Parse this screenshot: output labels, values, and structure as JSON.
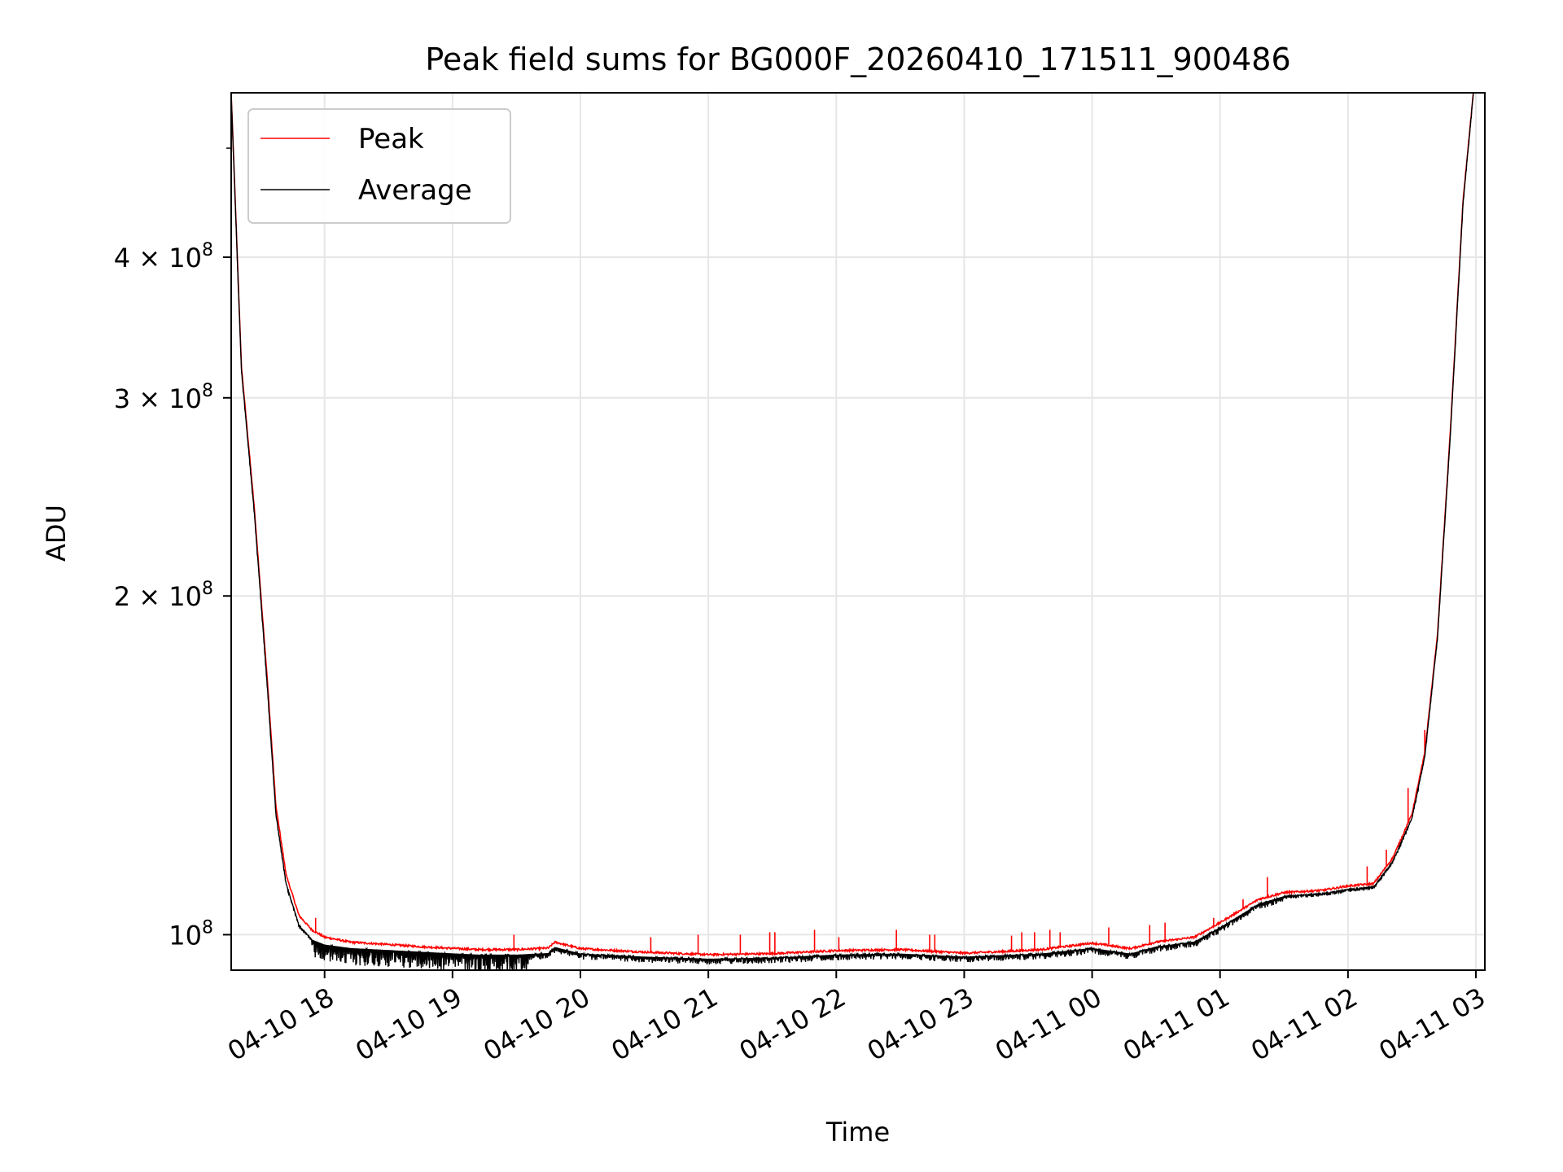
{
  "chart_data": {
    "type": "line",
    "title": "Peak field sums for BG000F_20260410_171511_900486",
    "xlabel": "Time",
    "ylabel": "ADU",
    "y_scale": "log",
    "ylim": [
      93000000,
      560000000
    ],
    "xlim_hours": [
      17.27,
      27.07
    ],
    "grid": true,
    "legend_location": "upper-left",
    "x_tick_labels": [
      "04-10 18",
      "04-10 19",
      "04-10 20",
      "04-10 21",
      "04-10 22",
      "04-10 23",
      "04-11 00",
      "04-11 01",
      "04-11 02",
      "04-11 03"
    ],
    "x_tick_hours": [
      18,
      19,
      20,
      21,
      22,
      23,
      24,
      25,
      26,
      27
    ],
    "y_ticks": [
      {
        "value": 100000000,
        "mantissa": "",
        "exponent": "8",
        "label": "10"
      },
      {
        "value": 200000000,
        "mantissa": "2",
        "exponent": "8",
        "label": "10"
      },
      {
        "value": 300000000,
        "mantissa": "3",
        "exponent": "8",
        "label": "10"
      },
      {
        "value": 400000000,
        "mantissa": "4",
        "exponent": "8",
        "label": "10"
      }
    ],
    "times_symbol": "×",
    "series": [
      {
        "name": "Peak",
        "color": "#ff0000",
        "x_hours": [
          17.27,
          17.35,
          17.45,
          17.55,
          17.62,
          17.7,
          17.8,
          17.9,
          18.0,
          18.2,
          18.5,
          18.8,
          19.2,
          19.5,
          19.75,
          19.8,
          20.0,
          20.5,
          21.0,
          21.5,
          22.0,
          22.5,
          23.0,
          23.3,
          23.6,
          24.0,
          24.3,
          24.5,
          24.8,
          25.0,
          25.3,
          25.5,
          25.8,
          26.0,
          26.2,
          26.35,
          26.5,
          26.6,
          26.7,
          26.8,
          26.9,
          26.98
        ],
        "values": [
          560000000,
          320000000,
          240000000,
          170000000,
          130000000,
          113000000,
          104000000,
          101000000,
          99500000,
          98500000,
          98000000,
          97500000,
          97000000,
          97000000,
          97300000,
          98500000,
          97200000,
          96500000,
          96000000,
          96200000,
          96800000,
          97000000,
          96300000,
          96600000,
          97000000,
          98300000,
          97200000,
          98500000,
          99500000,
          102500000,
          107500000,
          109000000,
          109500000,
          110500000,
          111000000,
          117000000,
          128000000,
          145000000,
          185000000,
          280000000,
          450000000,
          560000000
        ],
        "spikes": [
          {
            "x_hours": 17.93,
            "value": 103500000
          },
          {
            "x_hours": 19.48,
            "value": 100000000
          },
          {
            "x_hours": 20.55,
            "value": 99500000
          },
          {
            "x_hours": 20.92,
            "value": 100000000
          },
          {
            "x_hours": 21.25,
            "value": 100000000
          },
          {
            "x_hours": 21.48,
            "value": 100500000
          },
          {
            "x_hours": 21.52,
            "value": 100500000
          },
          {
            "x_hours": 21.83,
            "value": 101000000
          },
          {
            "x_hours": 22.02,
            "value": 99500000
          },
          {
            "x_hours": 22.47,
            "value": 101000000
          },
          {
            "x_hours": 22.73,
            "value": 100000000
          },
          {
            "x_hours": 22.77,
            "value": 100000000
          },
          {
            "x_hours": 23.37,
            "value": 99800000
          },
          {
            "x_hours": 23.45,
            "value": 100500000
          },
          {
            "x_hours": 23.55,
            "value": 100500000
          },
          {
            "x_hours": 23.67,
            "value": 101000000
          },
          {
            "x_hours": 23.75,
            "value": 100500000
          },
          {
            "x_hours": 24.13,
            "value": 101500000
          },
          {
            "x_hours": 24.45,
            "value": 102000000
          },
          {
            "x_hours": 24.57,
            "value": 102500000
          },
          {
            "x_hours": 24.95,
            "value": 103500000
          },
          {
            "x_hours": 25.18,
            "value": 107500000
          },
          {
            "x_hours": 25.37,
            "value": 112500000
          },
          {
            "x_hours": 26.15,
            "value": 115000000
          },
          {
            "x_hours": 26.3,
            "value": 119000000
          },
          {
            "x_hours": 26.47,
            "value": 135000000
          },
          {
            "x_hours": 26.6,
            "value": 152000000
          }
        ]
      },
      {
        "name": "Average",
        "color": "#000000",
        "x_hours": [
          17.27,
          17.35,
          17.45,
          17.55,
          17.62,
          17.7,
          17.8,
          17.9,
          18.0,
          18.2,
          18.5,
          18.8,
          19.2,
          19.5,
          19.75,
          19.8,
          20.0,
          20.5,
          21.0,
          21.5,
          22.0,
          22.5,
          23.0,
          23.3,
          23.6,
          24.0,
          24.3,
          24.5,
          24.8,
          25.0,
          25.3,
          25.5,
          25.8,
          26.0,
          26.2,
          26.35,
          26.5,
          26.6,
          26.7,
          26.8,
          26.9,
          26.98
        ],
        "values": [
          560000000,
          318000000,
          238000000,
          168000000,
          128000000,
          111000000,
          102000000,
          99000000,
          98000000,
          97300000,
          96900000,
          96500000,
          96000000,
          96000000,
          96300000,
          97500000,
          96200000,
          95600000,
          95200000,
          95400000,
          96000000,
          96200000,
          95600000,
          95900000,
          96200000,
          97300000,
          96200000,
          97600000,
          98600000,
          101500000,
          106500000,
          108200000,
          108800000,
          109700000,
          110300000,
          116200000,
          127000000,
          144000000,
          184000000,
          278000000,
          448000000,
          560000000
        ],
        "noise_band_hours": [
          17.9,
          19.6
        ],
        "noise_depth": 0.035
      }
    ]
  }
}
